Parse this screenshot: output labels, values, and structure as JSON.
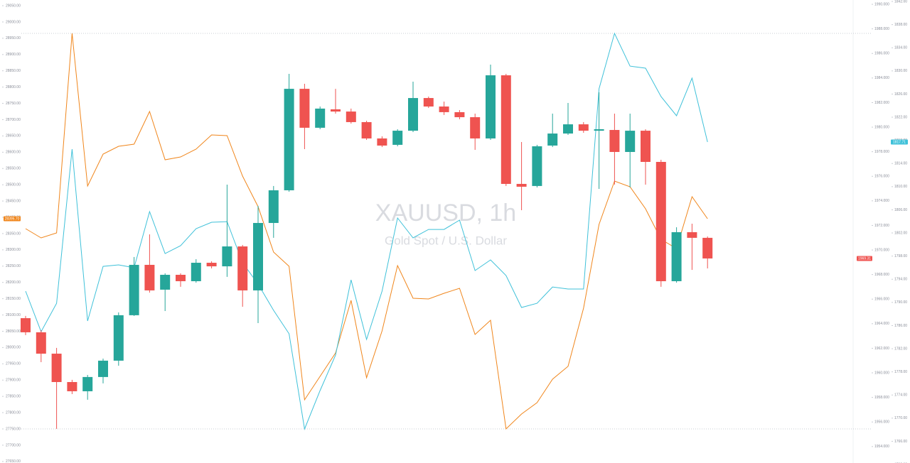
{
  "chart_data": {
    "type": "candlestick",
    "title": "XAUUSD, 1h",
    "subtitle": "Gold Spot / U.S. Dollar",
    "up_color": "#26a69a",
    "down_color": "#ef5350",
    "open": [
      1964.45,
      1963.3,
      1961.56,
      1959.25,
      1958.5,
      1959.66,
      1960.99,
      1964.69,
      1968.79,
      1966.77,
      1967.98,
      1967.46,
      1968.96,
      1968.67,
      1970.29,
      1966.71,
      1972.2,
      1974.86,
      1983.12,
      1979.95,
      1981.45,
      1981.27,
      1980.41,
      1979.08,
      1978.56,
      1979.71,
      1982.37,
      1981.68,
      1981.22,
      1980.81,
      1979.08,
      1984.22,
      1975.38,
      1975.21,
      1978.5,
      1979.48,
      1980.23,
      1979.71,
      1979.77,
      1977.98,
      1979.71,
      1977.17,
      1967.46,
      1971.45,
      1970.99
    ],
    "high": [
      1964.63,
      1963.47,
      1962.03,
      1959.43,
      1959.83,
      1961.16,
      1964.92,
      1969.43,
      1971.27,
      1968.1,
      1968.1,
      1969.25,
      1969.08,
      1975.32,
      1970.41,
      1973.59,
      1975.21,
      1984.34,
      1983.53,
      1981.68,
      1983.12,
      1981.51,
      1980.52,
      1979.25,
      1979.83,
      1983.7,
      1982.49,
      1982.08,
      1981.39,
      1981.1,
      1985.09,
      1984.34,
      1978.79,
      1978.56,
      1981.1,
      1981.97,
      1980.41,
      1982.84,
      1981.1,
      1981.1,
      1979.83,
      1977.34,
      1971.85,
      1972.14,
      1971.1
    ],
    "low": [
      1963.07,
      1960.87,
      1955.44,
      1958.27,
      1957.81,
      1959.14,
      1960.58,
      1964.63,
      1966.53,
      1965.03,
      1967.0,
      1967.34,
      1968.5,
      1967.81,
      1965.38,
      1964.05,
      1970.99,
      1974.74,
      1978.21,
      1979.83,
      1981.1,
      1980.29,
      1978.96,
      1978.38,
      1978.44,
      1979.6,
      1981.56,
      1980.99,
      1980.64,
      1978.15,
      1978.96,
      1975.21,
      1973.24,
      1975.09,
      1978.38,
      1979.37,
      1979.54,
      1974.97,
      1975.32,
      1975.09,
      1975.32,
      1967.0,
      1967.34,
      1968.38,
      1968.5
    ],
    "close": [
      1963.3,
      1961.56,
      1959.25,
      1958.5,
      1959.66,
      1960.99,
      1964.69,
      1968.79,
      1966.71,
      1967.98,
      1967.46,
      1968.96,
      1968.67,
      1970.29,
      1966.71,
      1972.2,
      1974.86,
      1983.12,
      1979.95,
      1981.51,
      1981.27,
      1980.41,
      1979.08,
      1978.5,
      1979.71,
      1982.37,
      1981.68,
      1981.22,
      1980.81,
      1979.08,
      1984.22,
      1975.38,
      1975.15,
      1978.44,
      1979.48,
      1980.23,
      1979.71,
      1979.83,
      1977.98,
      1979.71,
      1977.17,
      1967.46,
      1971.45,
      1970.99,
      1969.31
    ],
    "close_label": "1969.31",
    "ylim": [
      1952.66,
      1990.35
    ],
    "yticks": [
      {
        "value": 1954,
        "label": "1954.000"
      },
      {
        "value": 1956,
        "label": "1956.000"
      },
      {
        "value": 1958,
        "label": "1958.000"
      },
      {
        "value": 1960,
        "label": "1960.000"
      },
      {
        "value": 1962,
        "label": "1962.000"
      },
      {
        "value": 1964,
        "label": "1964.000"
      },
      {
        "value": 1966,
        "label": "1966.000"
      },
      {
        "value": 1968,
        "label": "1968.000"
      },
      {
        "value": 1970,
        "label": "1970.000"
      },
      {
        "value": 1972,
        "label": "1972.000"
      },
      {
        "value": 1974,
        "label": "1974.000"
      },
      {
        "value": 1976,
        "label": "1976.000"
      },
      {
        "value": 1978,
        "label": "1978.000"
      },
      {
        "value": 1980,
        "label": "1980.000"
      },
      {
        "value": 1982,
        "label": "1982.000"
      },
      {
        "value": 1984,
        "label": "1984.000"
      },
      {
        "value": 1986,
        "label": "1986.000"
      },
      {
        "value": 1988,
        "label": "1988.000"
      },
      {
        "value": 1990,
        "label": "1990.000"
      }
    ],
    "y2lim": [
      1762.25,
      1842.25
    ],
    "y2ticks": [
      {
        "value": 1762,
        "label": "1762.00"
      },
      {
        "value": 1766,
        "label": "1766.00"
      },
      {
        "value": 1770,
        "label": "1770.00"
      },
      {
        "value": 1774,
        "label": "1774.00"
      },
      {
        "value": 1778,
        "label": "1778.00"
      },
      {
        "value": 1782,
        "label": "1782.00"
      },
      {
        "value": 1786,
        "label": "1786.00"
      },
      {
        "value": 1790,
        "label": "1790.00"
      },
      {
        "value": 1794,
        "label": "1794.00"
      },
      {
        "value": 1798,
        "label": "1798.00"
      },
      {
        "value": 1802,
        "label": "1802.00"
      },
      {
        "value": 1806,
        "label": "1806.00"
      },
      {
        "value": 1810,
        "label": "1810.00"
      },
      {
        "value": 1814,
        "label": "1814.00"
      },
      {
        "value": 1818,
        "label": "1818.00"
      },
      {
        "value": 1822,
        "label": "1822.00"
      },
      {
        "value": 1826,
        "label": "1826.00"
      },
      {
        "value": 1830,
        "label": "1830.00"
      },
      {
        "value": 1834,
        "label": "1834.00"
      },
      {
        "value": 1838,
        "label": "1838.00"
      },
      {
        "value": 1842,
        "label": "1842.00"
      }
    ],
    "y3lim": [
      27645.3,
      29067.5
    ],
    "y3ticks": [
      {
        "value": 27650,
        "label": "27650.00"
      },
      {
        "value": 27700,
        "label": "27700.00"
      },
      {
        "value": 27750,
        "label": "27750.00"
      },
      {
        "value": 27800,
        "label": "27800.00"
      },
      {
        "value": 27850,
        "label": "27850.00"
      },
      {
        "value": 27900,
        "label": "27900.00"
      },
      {
        "value": 27950,
        "label": "27950.00"
      },
      {
        "value": 28000,
        "label": "28000.00"
      },
      {
        "value": 28050,
        "label": "28050.00"
      },
      {
        "value": 28100,
        "label": "28100.00"
      },
      {
        "value": 28150,
        "label": "28150.00"
      },
      {
        "value": 28200,
        "label": "28200.00"
      },
      {
        "value": 28250,
        "label": "28250.00"
      },
      {
        "value": 28300,
        "label": "28300.00"
      },
      {
        "value": 28350,
        "label": "28350.00"
      },
      {
        "value": 28400,
        "label": "28400.00"
      },
      {
        "value": 28450,
        "label": "28450.00"
      },
      {
        "value": 28500,
        "label": "28500.00"
      },
      {
        "value": 28550,
        "label": "28550.00"
      },
      {
        "value": 28600,
        "label": "28600.00"
      },
      {
        "value": 28650,
        "label": "28650.00"
      },
      {
        "value": 28700,
        "label": "28700.00"
      },
      {
        "value": 28750,
        "label": "28750.00"
      },
      {
        "value": 28800,
        "label": "28800.00"
      },
      {
        "value": 28850,
        "label": "28850.00"
      },
      {
        "value": 28900,
        "label": "28900.00"
      },
      {
        "value": 28950,
        "label": "28950.00"
      },
      {
        "value": 29000,
        "label": "29000.00"
      },
      {
        "value": 29050,
        "label": "29050.00"
      }
    ],
    "series": [
      {
        "color": "#f0861c",
        "axis": "y3",
        "last_label": "28395.70",
        "values": [
          28365.2,
          28336.8,
          28352.1,
          28964.9,
          28496.0,
          28594.2,
          28618.2,
          28624.7,
          28725.0,
          28576.7,
          28585.4,
          28609.4,
          28653.1,
          28650.9,
          28526.6,
          28432.8,
          28293.2,
          28249.6,
          27839.5,
          27911.5,
          27983.5,
          28144.9,
          27907.2,
          28051.1,
          28251.8,
          28151.4,
          28149.2,
          28166.7,
          28182.0,
          28040.2,
          28083.8,
          27750.1,
          27795.9,
          27830.8,
          27902.8,
          27942.1,
          28120.9,
          28378.3,
          28511.3,
          28493.8,
          28426.2,
          28332.5,
          28304.1,
          28463.3,
          28395.7
        ]
      },
      {
        "color": "#3fc1d9",
        "axis": "y2",
        "last_label": "1817.71",
        "values": [
          1791.94,
          1784.94,
          1789.85,
          1816.48,
          1786.79,
          1796.23,
          1796.48,
          1795.99,
          1805.68,
          1798.44,
          1799.79,
          1802.74,
          1803.84,
          1803.96,
          1796.85,
          1793.17,
          1788.63,
          1784.58,
          1768.13,
          1774.76,
          1780.9,
          1793.9,
          1783.6,
          1791.94,
          1804.58,
          1801.14,
          1802.61,
          1802.61,
          1804.21,
          1795.5,
          1797.34,
          1794.64,
          1789.12,
          1789.85,
          1792.67,
          1792.31,
          1792.31,
          1826.91,
          1836.48,
          1830.83,
          1830.47,
          1825.56,
          1822.25,
          1828.75,
          1817.71
        ]
      }
    ]
  }
}
